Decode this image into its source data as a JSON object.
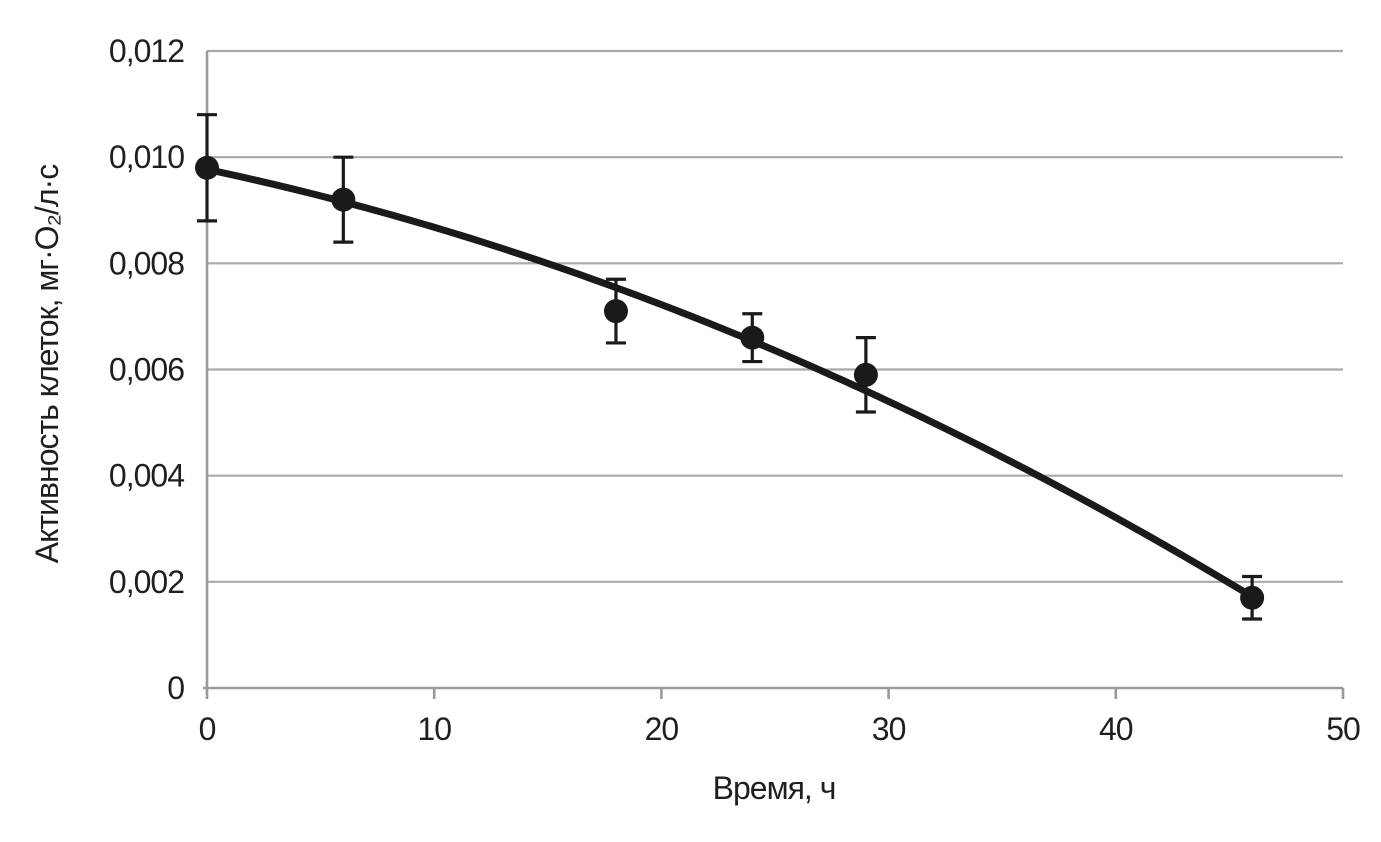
{
  "chart_data": {
    "type": "scatter",
    "title": "",
    "xlabel": "Время, ч",
    "ylabel": "Активность клеток, мг·О₂/л·с",
    "x": [
      0,
      6,
      18,
      24,
      29,
      46
    ],
    "y": [
      0.0098,
      0.0092,
      0.0071,
      0.0066,
      0.0059,
      0.0017
    ],
    "yerr": [
      0.001,
      0.0008,
      0.0006,
      0.00045,
      0.0007,
      0.0004
    ],
    "xlim": [
      0,
      50
    ],
    "ylim": [
      0,
      0.012
    ],
    "xtick_values": [
      0,
      10,
      20,
      30,
      40,
      50
    ],
    "xtick_labels": [
      "0",
      "10",
      "20",
      "30",
      "40",
      "50"
    ],
    "ytick_values": [
      0,
      0.002,
      0.004,
      0.006,
      0.008,
      0.01,
      0.012
    ],
    "ytick_labels": [
      "0",
      "0,002",
      "0,004",
      "0,006",
      "0,008",
      "0,010",
      "0,012"
    ],
    "trendline": {
      "type": "polynomial",
      "order": 2,
      "a0": 0.00977,
      "a1": -9.08e-05,
      "a2": -1.83e-06,
      "x_start": 0,
      "x_end": 46
    },
    "grid": "horizontal",
    "legend": "none",
    "colors": {
      "point": "#1a1a1a",
      "line": "#1a1a1a",
      "error_bar": "#1a1a1a",
      "grid": "#a9a9a9",
      "axis": "#9a9a9a",
      "text": "#1f1f1f",
      "background": "#ffffff"
    }
  }
}
